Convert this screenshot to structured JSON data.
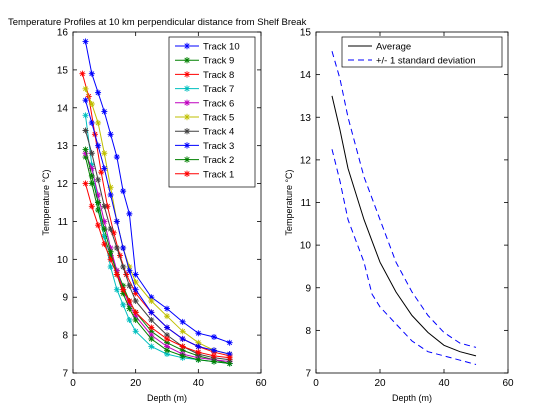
{
  "chart_data": [
    {
      "type": "line",
      "title": "Temperature Profiles at 10 km perpendicular distance from Shelf Break",
      "xlabel": "Depth (m)",
      "ylabel": "Temperature  °C)",
      "xlim": [
        0,
        60
      ],
      "ylim": [
        7,
        16
      ],
      "xticks": [
        "0",
        "20",
        "40",
        "60"
      ],
      "yticks": [
        "7",
        "8",
        "9",
        "10",
        "11",
        "12",
        "13",
        "14",
        "15",
        "16"
      ],
      "grid": false,
      "legend_position": "top-right",
      "series": [
        {
          "name": "Track 10",
          "color": "#0000ff",
          "marker": "star",
          "x": [
            4,
            6,
            8,
            10,
            12,
            14,
            16,
            18,
            20,
            25,
            30,
            35,
            40,
            45,
            50
          ],
          "y": [
            15.75,
            14.9,
            14.4,
            13.9,
            13.3,
            12.7,
            11.8,
            11.2,
            9.6,
            9.0,
            8.7,
            8.35,
            8.05,
            7.95,
            7.8
          ]
        },
        {
          "name": "Track 9",
          "color": "#008000",
          "marker": "star",
          "x": [
            4,
            6,
            8,
            10,
            12,
            14,
            16,
            18,
            20,
            25,
            30,
            35,
            40,
            45,
            50
          ],
          "y": [
            12.7,
            12.0,
            11.3,
            10.6,
            10.1,
            9.7,
            9.3,
            8.9,
            8.6,
            8.1,
            7.8,
            7.6,
            7.45,
            7.35,
            7.25
          ]
        },
        {
          "name": "Track 8",
          "color": "#ff0000",
          "marker": "star",
          "x": [
            3,
            5,
            7,
            9,
            11,
            13,
            15,
            17,
            20,
            25,
            30,
            35,
            40,
            45,
            50
          ],
          "y": [
            14.9,
            14.3,
            13.3,
            12.3,
            11.4,
            10.7,
            10.1,
            9.6,
            9.1,
            8.6,
            8.2,
            7.9,
            7.7,
            7.55,
            7.45
          ]
        },
        {
          "name": "Track 7",
          "color": "#00bfbf",
          "marker": "star",
          "x": [
            4,
            6,
            8,
            10,
            12,
            14,
            16,
            18,
            20,
            25,
            30,
            35,
            40,
            45,
            50
          ],
          "y": [
            13.8,
            12.5,
            11.5,
            10.6,
            9.8,
            9.2,
            8.8,
            8.4,
            8.1,
            7.7,
            7.5,
            7.4,
            7.35,
            7.3,
            7.25
          ]
        },
        {
          "name": "Track 6",
          "color": "#bf00bf",
          "marker": "star",
          "x": [
            4,
            6,
            8,
            10,
            12,
            14,
            16,
            18,
            20,
            25,
            30,
            35,
            40,
            45,
            50
          ],
          "y": [
            12.8,
            12.4,
            11.7,
            11.0,
            10.3,
            9.7,
            9.2,
            8.8,
            8.5,
            8.0,
            7.7,
            7.5,
            7.4,
            7.35,
            7.3
          ]
        },
        {
          "name": "Track 5",
          "color": "#bfbf00",
          "marker": "star",
          "x": [
            4,
            6,
            8,
            10,
            12,
            14,
            16,
            18,
            20,
            25,
            30,
            35,
            40,
            45,
            50
          ],
          "y": [
            14.5,
            14.1,
            13.6,
            12.8,
            11.9,
            11.0,
            10.3,
            9.8,
            9.4,
            8.9,
            8.5,
            8.1,
            7.8,
            7.6,
            7.5
          ]
        },
        {
          "name": "Track 4",
          "color": "#404040",
          "marker": "star",
          "x": [
            4,
            6,
            8,
            10,
            12,
            14,
            16,
            18,
            20,
            25,
            30,
            35,
            40,
            45,
            50
          ],
          "y": [
            13.4,
            12.8,
            12.1,
            11.4,
            10.8,
            10.3,
            9.8,
            9.3,
            8.9,
            8.4,
            8.0,
            7.7,
            7.5,
            7.4,
            7.35
          ]
        },
        {
          "name": "Track 3",
          "color": "#0000ff",
          "marker": "star",
          "x": [
            4,
            6,
            8,
            10,
            12,
            14,
            16,
            18,
            20,
            25,
            30,
            35,
            40,
            45,
            50
          ],
          "y": [
            14.2,
            13.6,
            13.0,
            12.4,
            11.7,
            11.0,
            10.3,
            9.7,
            9.2,
            8.6,
            8.2,
            7.9,
            7.7,
            7.6,
            7.5
          ]
        },
        {
          "name": "Track 2",
          "color": "#008000",
          "marker": "star",
          "x": [
            4,
            6,
            8,
            10,
            12,
            14,
            16,
            18,
            20,
            25,
            30,
            35,
            40,
            45,
            50
          ],
          "y": [
            12.9,
            12.2,
            11.5,
            10.8,
            10.2,
            9.6,
            9.1,
            8.7,
            8.4,
            7.9,
            7.6,
            7.45,
            7.35,
            7.3,
            7.25
          ]
        },
        {
          "name": "Track 1",
          "color": "#ff0000",
          "marker": "star",
          "x": [
            4,
            6,
            8,
            10,
            12,
            14,
            16,
            18,
            20,
            25,
            30,
            35,
            40,
            45,
            50
          ],
          "y": [
            12.0,
            11.4,
            10.9,
            10.4,
            10.0,
            9.6,
            9.2,
            8.9,
            8.6,
            8.2,
            7.9,
            7.7,
            7.55,
            7.45,
            7.4
          ]
        }
      ]
    },
    {
      "type": "line",
      "title": "",
      "xlabel": "Depth (m)",
      "ylabel": "Temperature  °C)",
      "xlim": [
        0,
        60
      ],
      "ylim": [
        7,
        15
      ],
      "xticks": [
        "0",
        "20",
        "40",
        "60"
      ],
      "yticks": [
        "7",
        "8",
        "9",
        "10",
        "11",
        "12",
        "13",
        "14",
        "15"
      ],
      "grid": false,
      "legend_position": "top-right",
      "series": [
        {
          "name": "Average",
          "color": "#000000",
          "style": "solid",
          "x": [
            5,
            7.5,
            10,
            12.5,
            15,
            17.5,
            20,
            25,
            30,
            35,
            40,
            45,
            50
          ],
          "y": [
            13.5,
            12.7,
            11.8,
            11.2,
            10.6,
            10.1,
            9.6,
            8.9,
            8.35,
            7.95,
            7.65,
            7.5,
            7.4
          ]
        },
        {
          "name": "+/- 1 standard deviation",
          "color": "#0000ff",
          "style": "dashed",
          "x": [
            5,
            7.5,
            10,
            12.5,
            15,
            17.5,
            20,
            25,
            30,
            35,
            40,
            45,
            50
          ],
          "y": [
            14.55,
            13.9,
            13.0,
            12.3,
            11.6,
            11.1,
            10.6,
            9.6,
            8.9,
            8.35,
            7.95,
            7.7,
            7.6
          ]
        },
        {
          "name": "",
          "color": "#0000ff",
          "style": "dashed",
          "x": [
            5,
            7.5,
            10,
            12.5,
            15,
            17.5,
            20,
            25,
            30,
            35,
            40,
            45,
            50
          ],
          "y": [
            12.25,
            11.5,
            10.6,
            10.1,
            9.6,
            8.85,
            8.55,
            8.15,
            7.75,
            7.5,
            7.4,
            7.3,
            7.2
          ]
        }
      ]
    }
  ]
}
